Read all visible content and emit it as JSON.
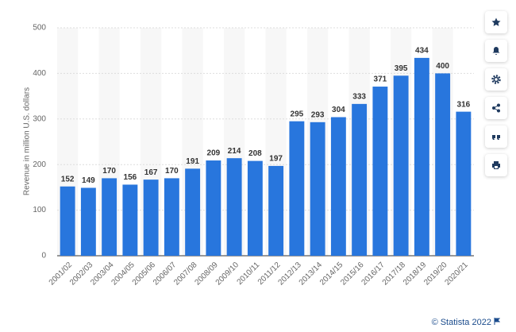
{
  "chart_data": {
    "type": "bar",
    "y_label": "Revenue in million U.S. dollars",
    "categories": [
      "2001/02",
      "2002/03",
      "2003/04",
      "2004/05",
      "2005/06",
      "2006/07",
      "2007/08",
      "2008/09",
      "2009/10",
      "2010/11",
      "2011/12",
      "2012/13",
      "2013/14",
      "2014/15",
      "2015/16",
      "2016/17",
      "2017/18",
      "2018/19",
      "2019/20",
      "2020/21"
    ],
    "values": [
      152,
      149,
      170,
      156,
      167,
      170,
      191,
      209,
      214,
      208,
      197,
      295,
      293,
      304,
      333,
      371,
      395,
      434,
      400,
      316
    ],
    "color": "#2876dd",
    "ylim": [
      0,
      500
    ],
    "yticks": [
      0,
      100,
      200,
      300,
      400,
      500
    ],
    "grid": true,
    "source": "© Statista 2022"
  }
}
